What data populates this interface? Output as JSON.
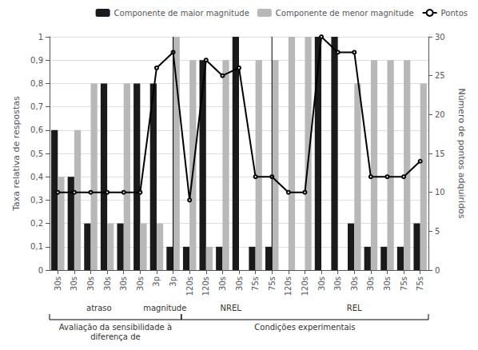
{
  "chart_data": {
    "type": "bar",
    "categories": [
      "30s",
      "30s",
      "30s",
      "30s",
      "30s",
      "30s",
      "3p",
      "3p",
      "120s",
      "120s",
      "30s",
      "30s",
      "75s",
      "75s",
      "120s",
      "120s",
      "30s",
      "30s",
      "30s",
      "30s",
      "30s",
      "75s",
      "75s"
    ],
    "series": [
      {
        "name": "Componente de maior magnitude",
        "type": "bar",
        "color": "#1a1a1a",
        "values": [
          0.6,
          0.4,
          0.2,
          0.8,
          0.2,
          0.8,
          0.8,
          0.1,
          0.1,
          0.9,
          0.1,
          1.0,
          0.1,
          0.1,
          0.0,
          0.0,
          1.0,
          1.0,
          0.2,
          0.1,
          0.1,
          0.1,
          0.2
        ]
      },
      {
        "name": "Componente de menor magnitude",
        "type": "bar",
        "color": "#b8b8b8",
        "values": [
          0.4,
          0.6,
          0.8,
          0.2,
          0.8,
          0.2,
          0.2,
          1.0,
          0.9,
          0.1,
          0.9,
          0.0,
          0.9,
          0.9,
          1.0,
          1.0,
          0.0,
          0.0,
          0.8,
          0.9,
          0.9,
          0.9,
          0.8
        ]
      },
      {
        "name": "Pontos",
        "type": "line",
        "color": "#000000",
        "axis": "y2",
        "values": [
          10,
          10,
          10,
          10,
          10,
          10,
          26,
          28,
          9,
          27,
          25,
          26,
          12,
          12,
          10,
          10,
          30,
          28,
          28,
          12,
          12,
          12,
          14
        ]
      }
    ],
    "ylabel": "Taxa relativa de respostas",
    "y2label": "Número de pontos adquiridos",
    "ylim": [
      0,
      1
    ],
    "yticks": [
      0,
      {
        "value": 0.1,
        "label": "0,1"
      },
      {
        "value": 0.2,
        "label": "0,2"
      },
      {
        "value": 0.3,
        "label": "0,3"
      },
      {
        "value": 0.4,
        "label": "0,4"
      },
      {
        "value": 0.5,
        "label": "0,5"
      },
      {
        "value": 0.6,
        "label": "0,6"
      },
      {
        "value": 0.7,
        "label": "0,7"
      },
      {
        "value": 0.8,
        "label": "0,8"
      },
      {
        "value": 0.9,
        "label": "0,9"
      },
      1
    ],
    "y2lim": [
      0,
      30
    ],
    "y2ticks": [
      0,
      5,
      10,
      15,
      20,
      25,
      30
    ],
    "annotations": [
      {
        "text": "atraso",
        "x": 2.5
      },
      {
        "text": "magnitude",
        "x": 6.5
      },
      {
        "text": "NREL",
        "x": 10.5
      },
      {
        "text": "REL",
        "x": 18.0
      },
      {
        "text": "Avaliação da sensibilidade à\ndiferença de",
        "x": 3.5,
        "span": [
          -0.5,
          7.5
        ]
      },
      {
        "text": "Condições experimentais",
        "x": 15.0,
        "span": [
          7.5,
          22.5
        ]
      }
    ],
    "legend": "top right",
    "grid": true
  }
}
